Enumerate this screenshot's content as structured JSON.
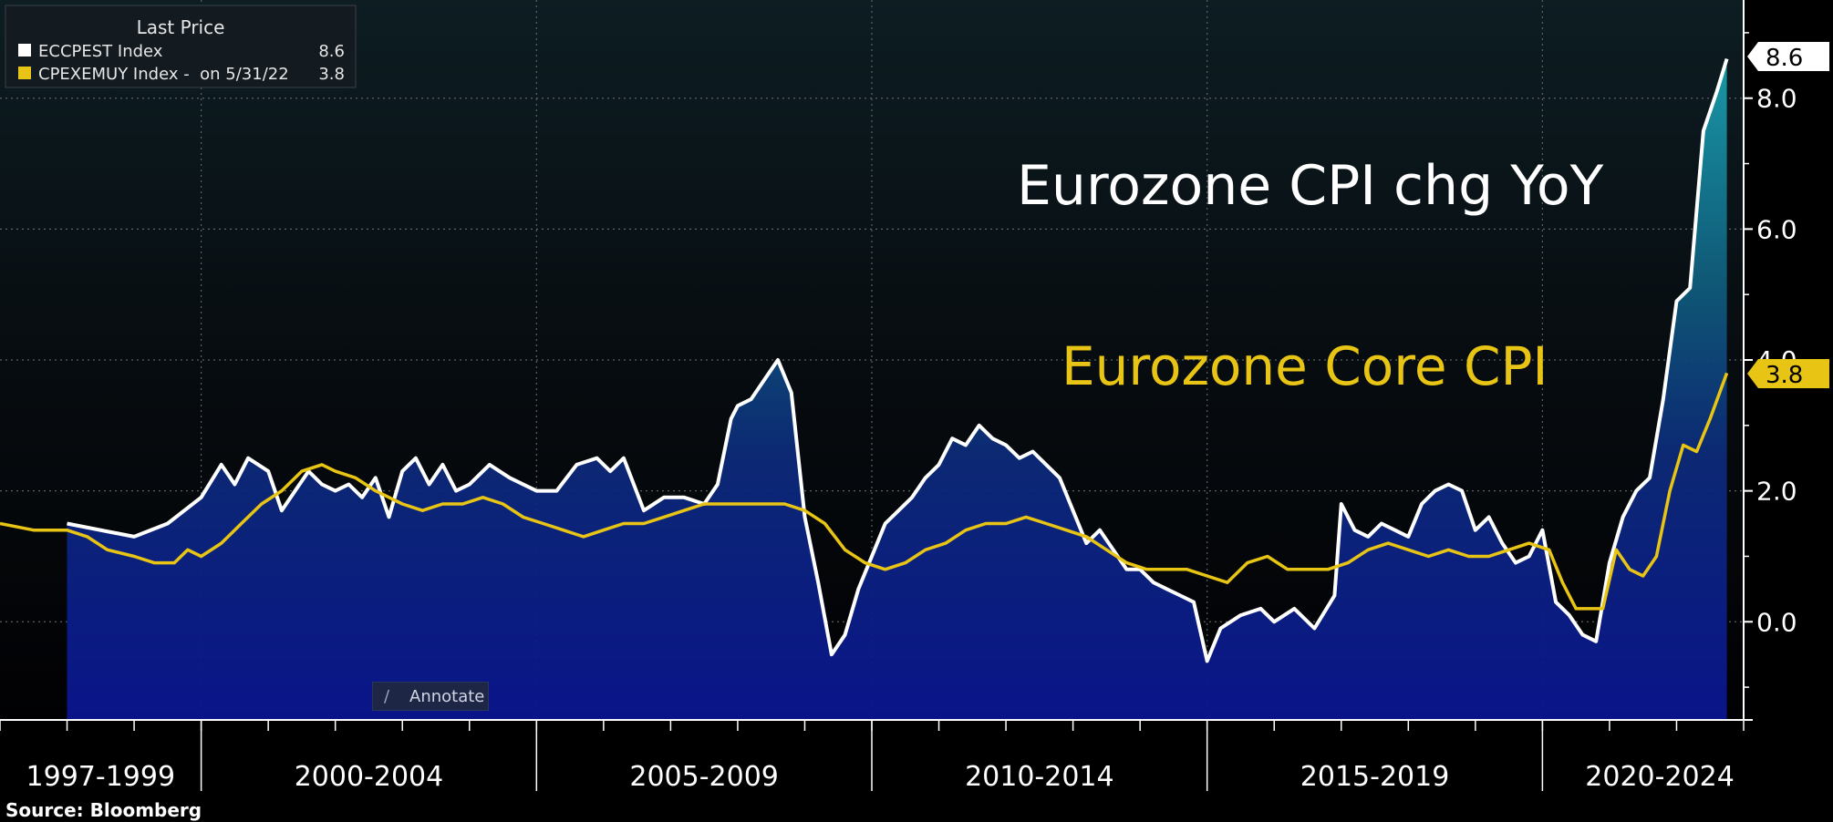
{
  "chart_data": {
    "type": "area",
    "x_unit": "year",
    "xlim": [
      1997.0,
      2023.0
    ],
    "ylim": [
      -1.5,
      9.5
    ],
    "y_ticks": [
      0.0,
      2.0,
      4.0,
      6.0,
      8.0
    ],
    "y_tick_labels": [
      "0.0",
      "2.0",
      "4.0",
      "6.0",
      "8.0"
    ],
    "x_period_labels": [
      "1997-1999",
      "2000-2004",
      "2005-2009",
      "2010-2014",
      "2015-2019",
      "2020-2024"
    ],
    "x_period_centers": [
      1998.5,
      2002.5,
      2007.5,
      2012.5,
      2017.5,
      2021.75
    ],
    "x_boundaries": [
      2000,
      2005,
      2010,
      2015,
      2020
    ],
    "grid": true,
    "legend_position": "top-left",
    "source": "Source: Bloomberg",
    "legend": {
      "title": "Last Price",
      "entries": [
        {
          "label": "ECCPEST Index",
          "value": "8.6",
          "color": "#ffffff"
        },
        {
          "label": "CPEXEMUY Index -  on 5/31/22",
          "value": "3.8",
          "color": "#e8c414"
        }
      ]
    },
    "annotations": [
      {
        "text": "Eurozone CPI chg YoY",
        "color": "#ffffff"
      },
      {
        "text": "Eurozone Core CPI",
        "color": "#e8c414"
      }
    ],
    "last_value_tags": [
      {
        "series": "ECCPEST Index",
        "text": "8.6",
        "value": 8.6
      },
      {
        "series": "CPEXEMUY Index",
        "text": "3.8",
        "value": 3.8
      }
    ],
    "series": [
      {
        "name": "ECCPEST Index",
        "color": "#ffffff",
        "fill": true,
        "x": [
          1998.0,
          1999.0,
          1999.5,
          2000.0,
          2000.3,
          2000.5,
          2000.7,
          2001.0,
          2001.2,
          2001.4,
          2001.6,
          2001.8,
          2002.0,
          2002.2,
          2002.4,
          2002.6,
          2002.8,
          2003.0,
          2003.2,
          2003.4,
          2003.6,
          2003.8,
          2004.0,
          2004.3,
          2004.6,
          2005.0,
          2005.3,
          2005.6,
          2005.9,
          2006.1,
          2006.3,
          2006.6,
          2006.9,
          2007.2,
          2007.5,
          2007.7,
          2007.9,
          2008.0,
          2008.2,
          2008.4,
          2008.6,
          2008.8,
          2009.0,
          2009.2,
          2009.4,
          2009.6,
          2009.8,
          2010.0,
          2010.2,
          2010.4,
          2010.6,
          2010.8,
          2011.0,
          2011.2,
          2011.4,
          2011.6,
          2011.8,
          2012.0,
          2012.2,
          2012.4,
          2012.6,
          2012.8,
          2013.0,
          2013.2,
          2013.4,
          2013.6,
          2013.8,
          2014.0,
          2014.2,
          2014.4,
          2014.6,
          2014.8,
          2015.0,
          2015.2,
          2015.5,
          2015.8,
          2016.0,
          2016.3,
          2016.6,
          2016.9,
          2017.0,
          2017.2,
          2017.4,
          2017.6,
          2017.8,
          2018.0,
          2018.2,
          2018.4,
          2018.6,
          2018.8,
          2019.0,
          2019.2,
          2019.4,
          2019.6,
          2019.8,
          2020.0,
          2020.2,
          2020.4,
          2020.6,
          2020.8,
          2021.0,
          2021.2,
          2021.4,
          2021.6,
          2021.8,
          2022.0,
          2022.2,
          2022.4,
          2022.6,
          2022.75
        ],
        "values": [
          1.5,
          1.3,
          1.5,
          1.9,
          2.4,
          2.1,
          2.5,
          2.3,
          1.7,
          2.0,
          2.3,
          2.1,
          2.0,
          2.1,
          1.9,
          2.2,
          1.6,
          2.3,
          2.5,
          2.1,
          2.4,
          2.0,
          2.1,
          2.4,
          2.2,
          2.0,
          2.0,
          2.4,
          2.5,
          2.3,
          2.5,
          1.7,
          1.9,
          1.9,
          1.8,
          2.1,
          3.1,
          3.3,
          3.4,
          3.7,
          4.0,
          3.5,
          1.6,
          0.6,
          -0.5,
          -0.2,
          0.5,
          1.0,
          1.5,
          1.7,
          1.9,
          2.2,
          2.4,
          2.8,
          2.7,
          3.0,
          2.8,
          2.7,
          2.5,
          2.6,
          2.4,
          2.2,
          1.7,
          1.2,
          1.4,
          1.1,
          0.8,
          0.8,
          0.6,
          0.5,
          0.4,
          0.3,
          -0.6,
          -0.1,
          0.1,
          0.2,
          0.0,
          0.2,
          -0.1,
          0.4,
          1.8,
          1.4,
          1.3,
          1.5,
          1.4,
          1.3,
          1.8,
          2.0,
          2.1,
          2.0,
          1.4,
          1.6,
          1.2,
          0.9,
          1.0,
          1.4,
          0.3,
          0.1,
          -0.2,
          -0.3,
          0.9,
          1.6,
          2.0,
          2.2,
          3.4,
          4.9,
          5.1,
          7.5,
          8.1,
          8.6
        ]
      },
      {
        "name": "CPEXEMUY Index",
        "color": "#e8c414",
        "fill": false,
        "x": [
          1997.0,
          1997.5,
          1998.0,
          1998.3,
          1998.6,
          1999.0,
          1999.3,
          1999.6,
          1999.8,
          2000.0,
          2000.3,
          2000.6,
          2000.9,
          2001.2,
          2001.5,
          2001.8,
          2002.0,
          2002.3,
          2002.6,
          2003.0,
          2003.3,
          2003.6,
          2003.9,
          2004.2,
          2004.5,
          2004.8,
          2005.1,
          2005.4,
          2005.7,
          2006.0,
          2006.3,
          2006.6,
          2006.9,
          2007.2,
          2007.5,
          2007.8,
          2008.1,
          2008.4,
          2008.7,
          2009.0,
          2009.3,
          2009.6,
          2009.9,
          2010.2,
          2010.5,
          2010.8,
          2011.1,
          2011.4,
          2011.7,
          2012.0,
          2012.3,
          2012.6,
          2012.9,
          2013.2,
          2013.5,
          2013.8,
          2014.1,
          2014.4,
          2014.7,
          2015.0,
          2015.3,
          2015.6,
          2015.9,
          2016.2,
          2016.5,
          2016.8,
          2017.1,
          2017.4,
          2017.7,
          2018.0,
          2018.3,
          2018.6,
          2018.9,
          2019.2,
          2019.5,
          2019.8,
          2020.1,
          2020.3,
          2020.5,
          2020.7,
          2020.9,
          2021.1,
          2021.3,
          2021.5,
          2021.7,
          2021.9,
          2022.1,
          2022.3,
          2022.5,
          2022.75
        ],
        "values": [
          1.5,
          1.4,
          1.4,
          1.3,
          1.1,
          1.0,
          0.9,
          0.9,
          1.1,
          1.0,
          1.2,
          1.5,
          1.8,
          2.0,
          2.3,
          2.4,
          2.3,
          2.2,
          2.0,
          1.8,
          1.7,
          1.8,
          1.8,
          1.9,
          1.8,
          1.6,
          1.5,
          1.4,
          1.3,
          1.4,
          1.5,
          1.5,
          1.6,
          1.7,
          1.8,
          1.8,
          1.8,
          1.8,
          1.8,
          1.7,
          1.5,
          1.1,
          0.9,
          0.8,
          0.9,
          1.1,
          1.2,
          1.4,
          1.5,
          1.5,
          1.6,
          1.5,
          1.4,
          1.3,
          1.1,
          0.9,
          0.8,
          0.8,
          0.8,
          0.7,
          0.6,
          0.9,
          1.0,
          0.8,
          0.8,
          0.8,
          0.9,
          1.1,
          1.2,
          1.1,
          1.0,
          1.1,
          1.0,
          1.0,
          1.1,
          1.2,
          1.1,
          0.6,
          0.2,
          0.2,
          0.2,
          1.1,
          0.8,
          0.7,
          1.0,
          2.0,
          2.7,
          2.6,
          3.1,
          3.8
        ]
      }
    ]
  },
  "ui": {
    "annotate_label": "Annotate"
  }
}
